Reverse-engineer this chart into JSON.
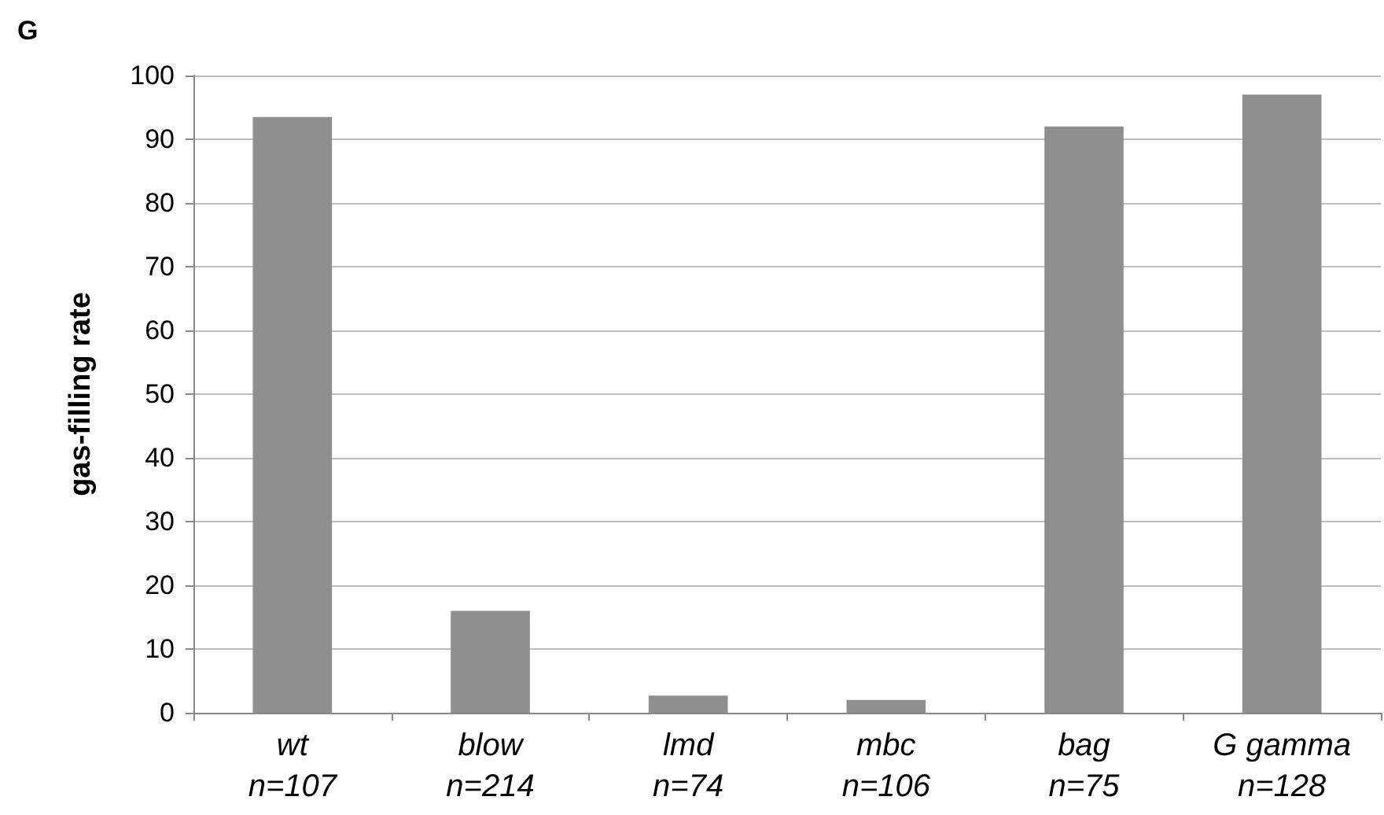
{
  "chart_data": {
    "type": "bar",
    "title": "G",
    "ylabel": "gas-filling rate",
    "categories": [
      "wt\nn=107",
      "blow\nn=214",
      "lmd\nn=74",
      "mbc\nn=106",
      "bag\nn=75",
      "G gamma\nn=128"
    ],
    "values": [
      93.5,
      16,
      2.7,
      2,
      92,
      97
    ],
    "color": "#8f8f8f",
    "ylim": [
      0,
      100
    ],
    "yticks": [
      0,
      10,
      20,
      30,
      40,
      50,
      60,
      70,
      80,
      90,
      100
    ],
    "grid": "y"
  }
}
